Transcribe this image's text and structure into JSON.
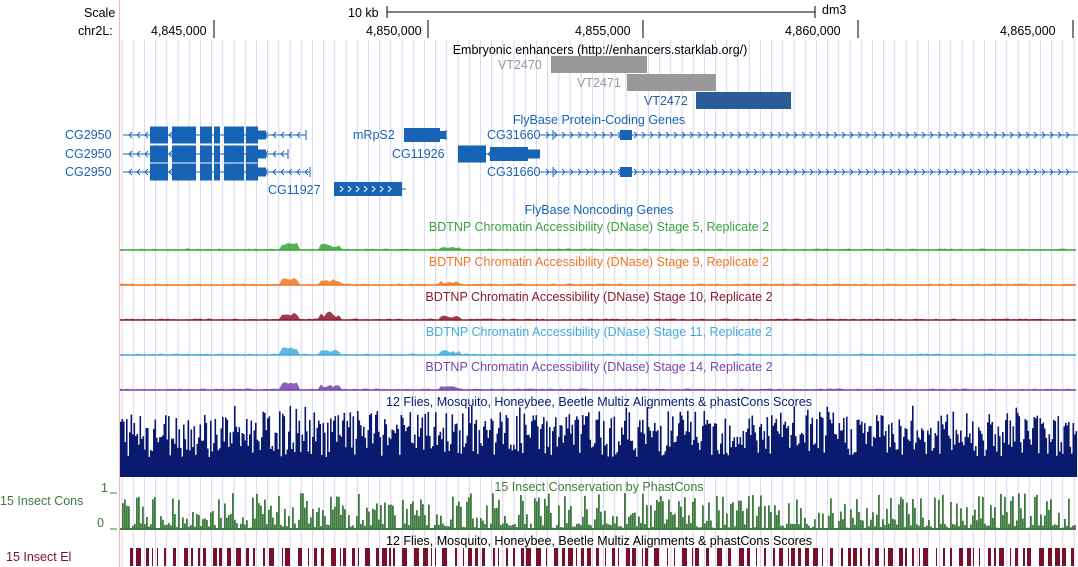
{
  "ruler": {
    "scale_label": "Scale",
    "chrom_label": "chr2L:",
    "scale_bar_label": "10 kb",
    "assembly": "dm3",
    "ticks": [
      "4,845,000",
      "4,850,000",
      "4,855,000",
      "4,860,000",
      "4,865,000"
    ]
  },
  "tracks": {
    "enhancers": {
      "title": "Embryonic enhancers (http://enhancers.starklab.org/)",
      "items": [
        "VT2470",
        "VT2471",
        "VT2472"
      ]
    },
    "flybase_coding": {
      "title": "FlyBase Protein-Coding Genes",
      "genes": [
        "CG2950",
        "CG2950",
        "CG2950",
        "CG11927",
        "mRpS2",
        "CG11926",
        "CG31660",
        "CG31660"
      ]
    },
    "flybase_noncoding": {
      "title": "FlyBase Noncoding Genes"
    },
    "dnase": [
      {
        "title": "BDTNP Chromatin Accessibility (DNase) Stage 5, Replicate 2",
        "color": "#3aa33a"
      },
      {
        "title": "BDTNP Chromatin Accessibility (DNase) Stage 9, Replicate 2",
        "color": "#ee7722"
      },
      {
        "title": "BDTNP Chromatin Accessibility (DNase) Stage 10, Replicate 2",
        "color": "#8b1a2a"
      },
      {
        "title": "BDTNP Chromatin Accessibility (DNase) Stage 11, Replicate 2",
        "color": "#44aadd"
      },
      {
        "title": "BDTNP Chromatin Accessibility (DNase) Stage 14, Replicate 2",
        "color": "#7744aa"
      }
    ],
    "multiz": {
      "title": "12 Flies, Mosquito, Honeybee, Beetle Multiz Alignments & phastCons Scores",
      "color": "#0a1a6e"
    },
    "phastcons": {
      "title": "15 Insect Conservation by PhastCons",
      "side_label": "15 Insect Cons",
      "axis_max": "1",
      "axis_min": "0",
      "color": "#3d7a3d"
    },
    "elements": {
      "title": "12 Flies, Mosquito, Honeybee, Beetle Multiz Alignments & phastCons Scores",
      "side_label": "15 Insect El",
      "color": "#7a0f2a"
    }
  },
  "colors": {
    "gene_blue": "#1763b5",
    "enh_gray": "#999999",
    "enh_blue": "#2c5c96",
    "grid": "#d6d6f0",
    "divider": "#f3b6b6"
  }
}
